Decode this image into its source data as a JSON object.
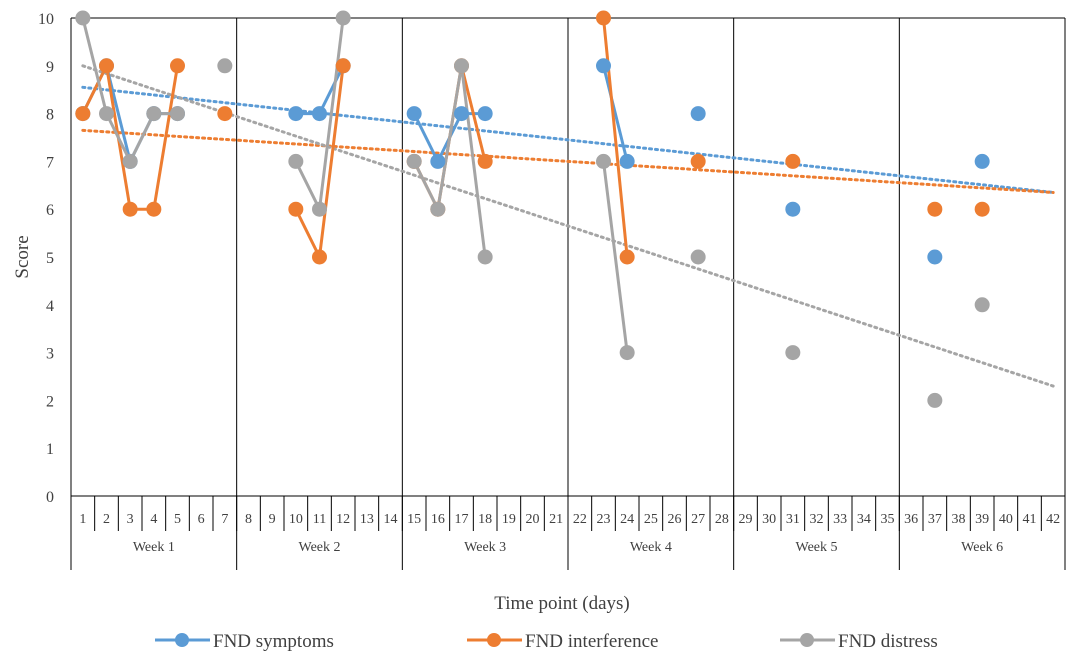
{
  "chart_data": {
    "type": "line",
    "xlabel": "Time point (days)",
    "ylabel": "Score",
    "ylim": [
      0,
      10
    ],
    "yticks": [
      0,
      1,
      2,
      3,
      4,
      5,
      6,
      7,
      8,
      9,
      10
    ],
    "x_days": [
      1,
      42
    ],
    "grid": false,
    "legend_position": "bottom",
    "weeks": [
      {
        "label": "Week 1",
        "start": 1,
        "end": 7
      },
      {
        "label": "Week 2",
        "start": 8,
        "end": 14
      },
      {
        "label": "Week 3",
        "start": 15,
        "end": 21
      },
      {
        "label": "Week 4",
        "start": 22,
        "end": 28
      },
      {
        "label": "Week 5",
        "start": 29,
        "end": 35
      },
      {
        "label": "Week 6",
        "start": 36,
        "end": 42
      }
    ],
    "series": [
      {
        "name": "FND symptoms",
        "color": "#5B9BD5",
        "points": [
          [
            1,
            8
          ],
          [
            2,
            9
          ],
          [
            3,
            7
          ],
          [
            4,
            8
          ],
          [
            5,
            8
          ],
          [
            10,
            8
          ],
          [
            11,
            8
          ],
          [
            12,
            9
          ],
          [
            15,
            8
          ],
          [
            16,
            7
          ],
          [
            17,
            8
          ],
          [
            18,
            8
          ],
          [
            23,
            9
          ],
          [
            24,
            7
          ],
          [
            27,
            8
          ],
          [
            31,
            6
          ],
          [
            37,
            5
          ],
          [
            39,
            7
          ]
        ],
        "trend": [
          8.55,
          6.35
        ]
      },
      {
        "name": "FND interference",
        "color": "#ED7D31",
        "points": [
          [
            1,
            8
          ],
          [
            2,
            9
          ],
          [
            3,
            6
          ],
          [
            4,
            6
          ],
          [
            5,
            9
          ],
          [
            7,
            8
          ],
          [
            10,
            6
          ],
          [
            11,
            5
          ],
          [
            12,
            9
          ],
          [
            15,
            7
          ],
          [
            16,
            6
          ],
          [
            17,
            9
          ],
          [
            18,
            7
          ],
          [
            23,
            10
          ],
          [
            24,
            5
          ],
          [
            27,
            7
          ],
          [
            31,
            7
          ],
          [
            37,
            6
          ],
          [
            39,
            6
          ]
        ],
        "trend": [
          7.65,
          6.35
        ]
      },
      {
        "name": "FND distress",
        "color": "#A5A5A5",
        "points": [
          [
            1,
            10
          ],
          [
            2,
            8
          ],
          [
            3,
            7
          ],
          [
            4,
            8
          ],
          [
            5,
            8
          ],
          [
            7,
            9
          ],
          [
            10,
            7
          ],
          [
            11,
            6
          ],
          [
            12,
            10
          ],
          [
            15,
            7
          ],
          [
            16,
            6
          ],
          [
            17,
            9
          ],
          [
            18,
            5
          ],
          [
            23,
            7
          ],
          [
            24,
            3
          ],
          [
            27,
            5
          ],
          [
            31,
            3
          ],
          [
            37,
            2
          ],
          [
            39,
            4
          ]
        ],
        "trend": [
          9.0,
          2.3
        ]
      }
    ]
  }
}
